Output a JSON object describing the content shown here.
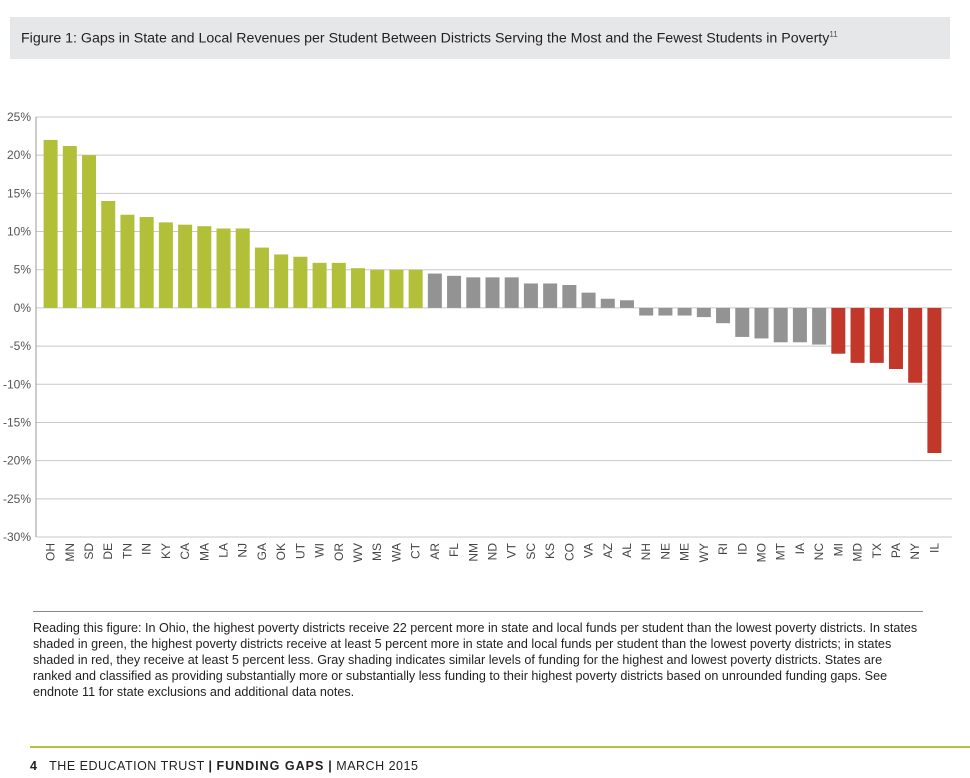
{
  "title": "Figure 1: Gaps in State and Local Revenues per Student Between Districts Serving the Most and the Fewest Students in Poverty",
  "title_note": "11",
  "chart_data": {
    "type": "bar",
    "ylim": [
      -30,
      25
    ],
    "yticks": [
      25,
      20,
      15,
      10,
      5,
      0,
      -5,
      -10,
      -15,
      -20,
      -25,
      -30
    ],
    "ytick_format": "percent",
    "grid": true,
    "colors": {
      "more": "#b2bf38",
      "similar": "#939393",
      "less": "#c1372a"
    },
    "categories": [
      "OH",
      "MN",
      "SD",
      "DE",
      "TN",
      "IN",
      "KY",
      "CA",
      "MA",
      "LA",
      "NJ",
      "GA",
      "OK",
      "UT",
      "WI",
      "OR",
      "WV",
      "MS",
      "WA",
      "CT",
      "AR",
      "FL",
      "NM",
      "ND",
      "VT",
      "SC",
      "KS",
      "CO",
      "VA",
      "AZ",
      "AL",
      "NH",
      "NE",
      "ME",
      "WY",
      "RI",
      "ID",
      "MO",
      "MT",
      "IA",
      "NC",
      "MI",
      "MD",
      "TX",
      "PA",
      "NY",
      "IL"
    ],
    "values": [
      22,
      21.2,
      20,
      14,
      12.2,
      11.9,
      11.2,
      10.9,
      10.7,
      10.4,
      10.4,
      7.9,
      7,
      6.7,
      5.9,
      5.9,
      5.2,
      5,
      5,
      5,
      4.5,
      4.2,
      4,
      4,
      4,
      3.2,
      3.2,
      3,
      2,
      1.2,
      1,
      -1,
      -1,
      -1,
      -1.2,
      -2,
      -3.8,
      -4,
      -4.5,
      -4.5,
      -4.8,
      -6,
      -7.2,
      -7.2,
      -8,
      -9.8,
      -19
    ]
  },
  "note": "Reading this figure: In Ohio, the highest poverty districts receive 22 percent more in state and local funds per student than the lowest poverty districts. In states shaded in green, the highest poverty districts receive at least 5 percent more in state and local funds per student than the lowest poverty districts; in states shaded in red, they receive at least 5 percent less. Gray shading indicates similar levels of funding for the highest and lowest poverty districts. States are ranked and classified as providing substantially more or substantially less funding to their highest poverty districts based on unrounded funding gaps. See endnote 11 for state exclusions and additional data notes.",
  "footer": {
    "page": "4",
    "org": "THE EDUCATION TRUST",
    "sep": "|",
    "report": "FUNDING GAPS",
    "date": "MARCH 2015"
  }
}
